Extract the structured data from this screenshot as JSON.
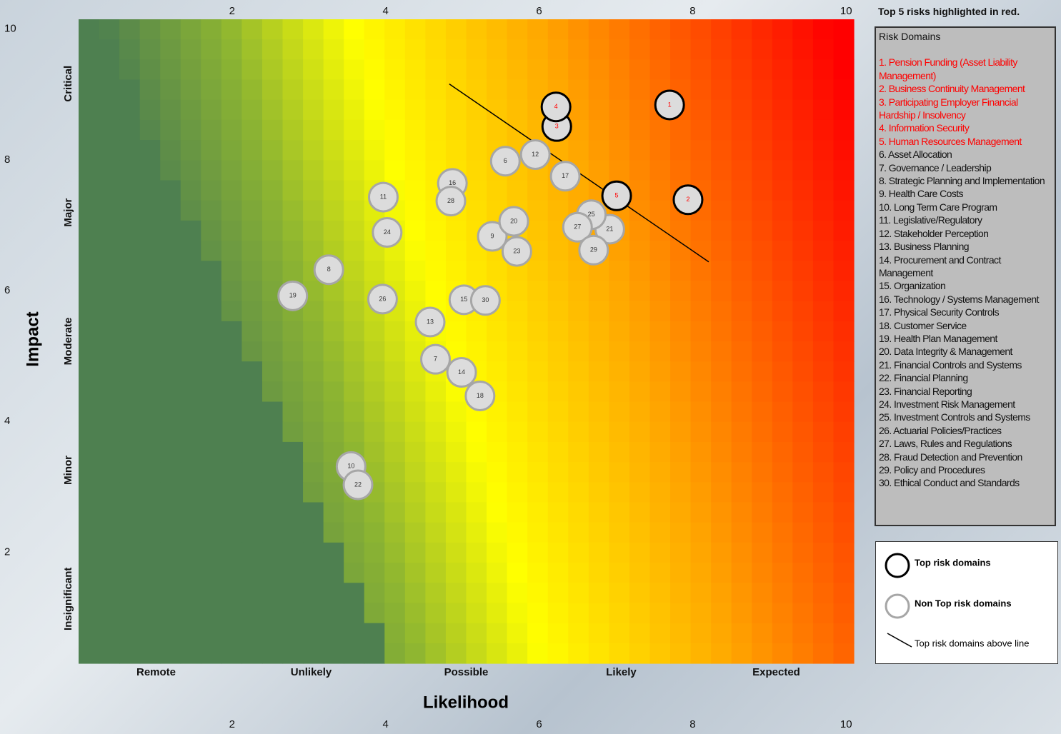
{
  "chart_data": {
    "type": "scatter",
    "x_label": "Likelihood",
    "y_label": "Impact",
    "xlim": [
      0,
      10.1
    ],
    "ylim": [
      0.3,
      10.15
    ],
    "xticks": [
      2,
      4,
      6,
      8,
      10
    ],
    "yticks": [
      2,
      4,
      6,
      8,
      10
    ],
    "x_categories": [
      "Remote",
      "Unlikely",
      "Possible",
      "Likely",
      "Expected"
    ],
    "y_categories": [
      "Critical",
      "Major",
      "Moderate",
      "Minor",
      "Insignificant"
    ],
    "note": "Top 5 risks highlighted in red.",
    "series": [
      {
        "name": "Top risk domains",
        "color": "#000000",
        "label_color": "#ff0000",
        "labels": [
          "1",
          "2",
          "3",
          "4",
          "5"
        ],
        "x": [
          7.7,
          7.94,
          6.23,
          6.22,
          7.01
        ],
        "y": [
          8.84,
          7.39,
          8.51,
          8.81,
          7.45
        ]
      },
      {
        "name": "Non Top risk domains",
        "color": "#a6a6a6",
        "label_color": "#333333",
        "labels": [
          "6",
          "7",
          "8",
          "9",
          "10",
          "11",
          "12",
          "13",
          "14",
          "15",
          "16",
          "17",
          "18",
          "19",
          "20",
          "21",
          "22",
          "23",
          "24",
          "25",
          "26",
          "27",
          "28",
          "29",
          "30"
        ],
        "x": [
          5.56,
          4.65,
          3.26,
          5.39,
          3.55,
          3.97,
          5.95,
          4.58,
          4.99,
          5.02,
          4.87,
          6.34,
          5.23,
          2.79,
          5.67,
          6.92,
          3.64,
          5.71,
          4.02,
          6.68,
          3.96,
          6.5,
          4.85,
          6.71,
          5.3
        ],
        "y": [
          7.98,
          4.95,
          6.32,
          6.83,
          3.31,
          7.43,
          8.08,
          5.52,
          4.75,
          5.86,
          7.64,
          7.75,
          4.39,
          5.92,
          7.06,
          6.94,
          3.03,
          6.6,
          6.89,
          7.16,
          5.87,
          6.97,
          7.37,
          6.62,
          5.85
        ]
      }
    ],
    "line": {
      "name": "Top risk domains above line",
      "color": "#000000",
      "x": [
        4.83,
        8.21
      ],
      "y": [
        9.16,
        6.44
      ]
    },
    "risk_domains": {
      "title": "Risk Domains",
      "top_color": "#ff0000",
      "top": [
        "1. Pension Funding (Asset Liability Management)",
        "2. Business Continuity Management",
        "3. Participating Employer Financial Hardship / Insolvency",
        "4. Information Security",
        "5. Human Resources Management"
      ],
      "others": [
        "6. Asset Allocation",
        "7. Governance / Leadership",
        "8. Strategic Planning and Implementation",
        "9. Health Care Costs",
        "10. Long Term Care Program",
        "11. Legislative/Regulatory",
        "12. Stakeholder Perception",
        "13. Business Planning",
        "14. Procurement and Contract Management",
        "15. Organization",
        "16. Technology / Systems Management",
        "17. Physical Security Controls",
        "18. Customer Service",
        "19. Health Plan Management",
        "20. Data Integrity & Management",
        "21. Financial Controls and Systems",
        "22. Financial Planning",
        "23. Financial Reporting",
        "24. Investment Risk Management",
        "25. Investment Controls and Systems",
        "26. Actuarial Policies/Practices",
        "27. Laws, Rules and Regulations",
        "28. Fraud Detection and Prevention",
        "29. Policy and Procedures",
        "30. Ethical Conduct and Standards"
      ]
    }
  }
}
